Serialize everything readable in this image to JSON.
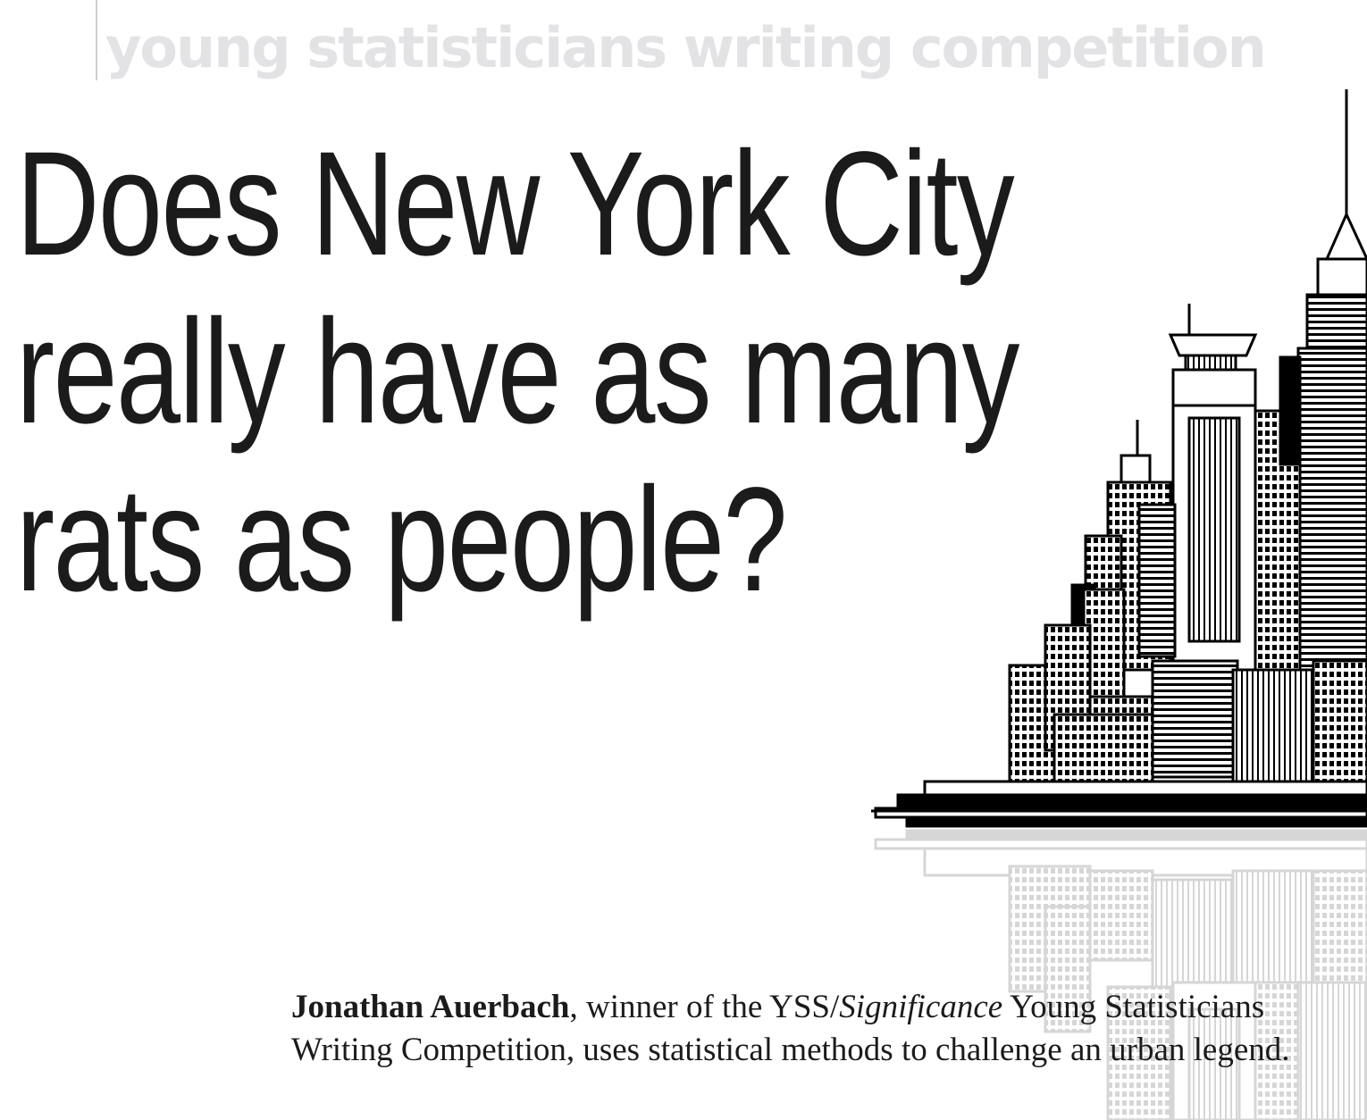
{
  "header": {
    "kicker": "young statisticians writing competition"
  },
  "article": {
    "title_lines": [
      "Does New York City",
      "really have as many",
      "rats as people?"
    ],
    "standfirst": {
      "author": "Jonathan Auerbach",
      "text_1": ", winner of the YSS/",
      "publication": "Significance",
      "text_2": " Young Statisticians Writing Competition, uses statistical methods to challenge an urban legend."
    }
  },
  "illustration": {
    "icon": "city-skyline-illustration",
    "ink_color": "#000000",
    "reflection_color": "#d6d6d6"
  }
}
